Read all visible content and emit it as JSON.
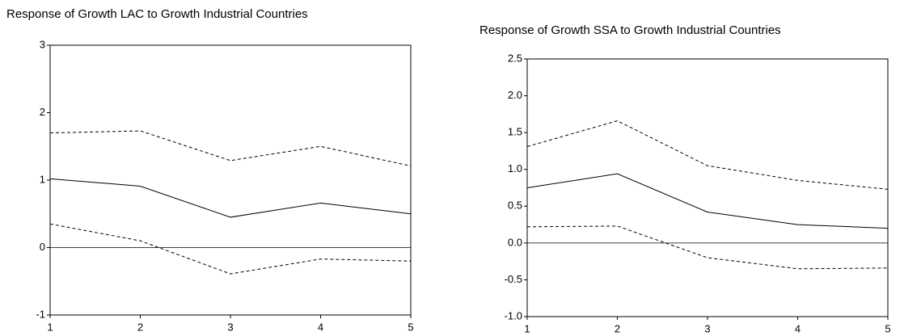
{
  "chart_data": [
    {
      "type": "line",
      "title": "Response of Growth LAC to Growth Industrial Countries",
      "x": [
        1,
        2,
        3,
        4,
        5
      ],
      "xlim": [
        1,
        5
      ],
      "xticks": [
        1,
        2,
        3,
        4,
        5
      ],
      "ylim": [
        -1,
        3
      ],
      "yticks": [
        -1,
        0,
        1,
        2,
        3
      ],
      "zero_line": true,
      "series": [
        {
          "color": "#000000",
          "dashed": false,
          "values": [
            1.02,
            0.91,
            0.45,
            0.66,
            0.5
          ]
        },
        {
          "color": "#000000",
          "dashed": true,
          "values": [
            1.7,
            1.73,
            1.29,
            1.5,
            1.21
          ]
        },
        {
          "color": "#000000",
          "dashed": true,
          "values": [
            0.35,
            0.1,
            -0.39,
            -0.17,
            -0.2
          ]
        }
      ]
    },
    {
      "type": "line",
      "title": "Response of Growth SSA to Growth Industrial Countries",
      "x": [
        1,
        2,
        3,
        4,
        5
      ],
      "xlim": [
        1,
        5
      ],
      "xticks": [
        1,
        2,
        3,
        4,
        5
      ],
      "ylim": [
        -1,
        2.5
      ],
      "yticks": [
        {
          "value": -1,
          "label": "-1.0"
        },
        -0.5,
        {
          "value": 0,
          "label": "0.0"
        },
        0.5,
        {
          "value": 1,
          "label": "1.0"
        },
        1.5,
        {
          "value": 2,
          "label": "2.0"
        },
        2.5
      ],
      "zero_line": true,
      "series": [
        {
          "color": "#000000",
          "dashed": false,
          "values": [
            0.75,
            0.94,
            0.42,
            0.25,
            0.2
          ]
        },
        {
          "color": "#000000",
          "dashed": true,
          "values": [
            1.31,
            1.66,
            1.05,
            0.85,
            0.73
          ]
        },
        {
          "color": "#000000",
          "dashed": true,
          "values": [
            0.22,
            0.23,
            -0.2,
            -0.35,
            -0.34
          ]
        }
      ]
    }
  ]
}
